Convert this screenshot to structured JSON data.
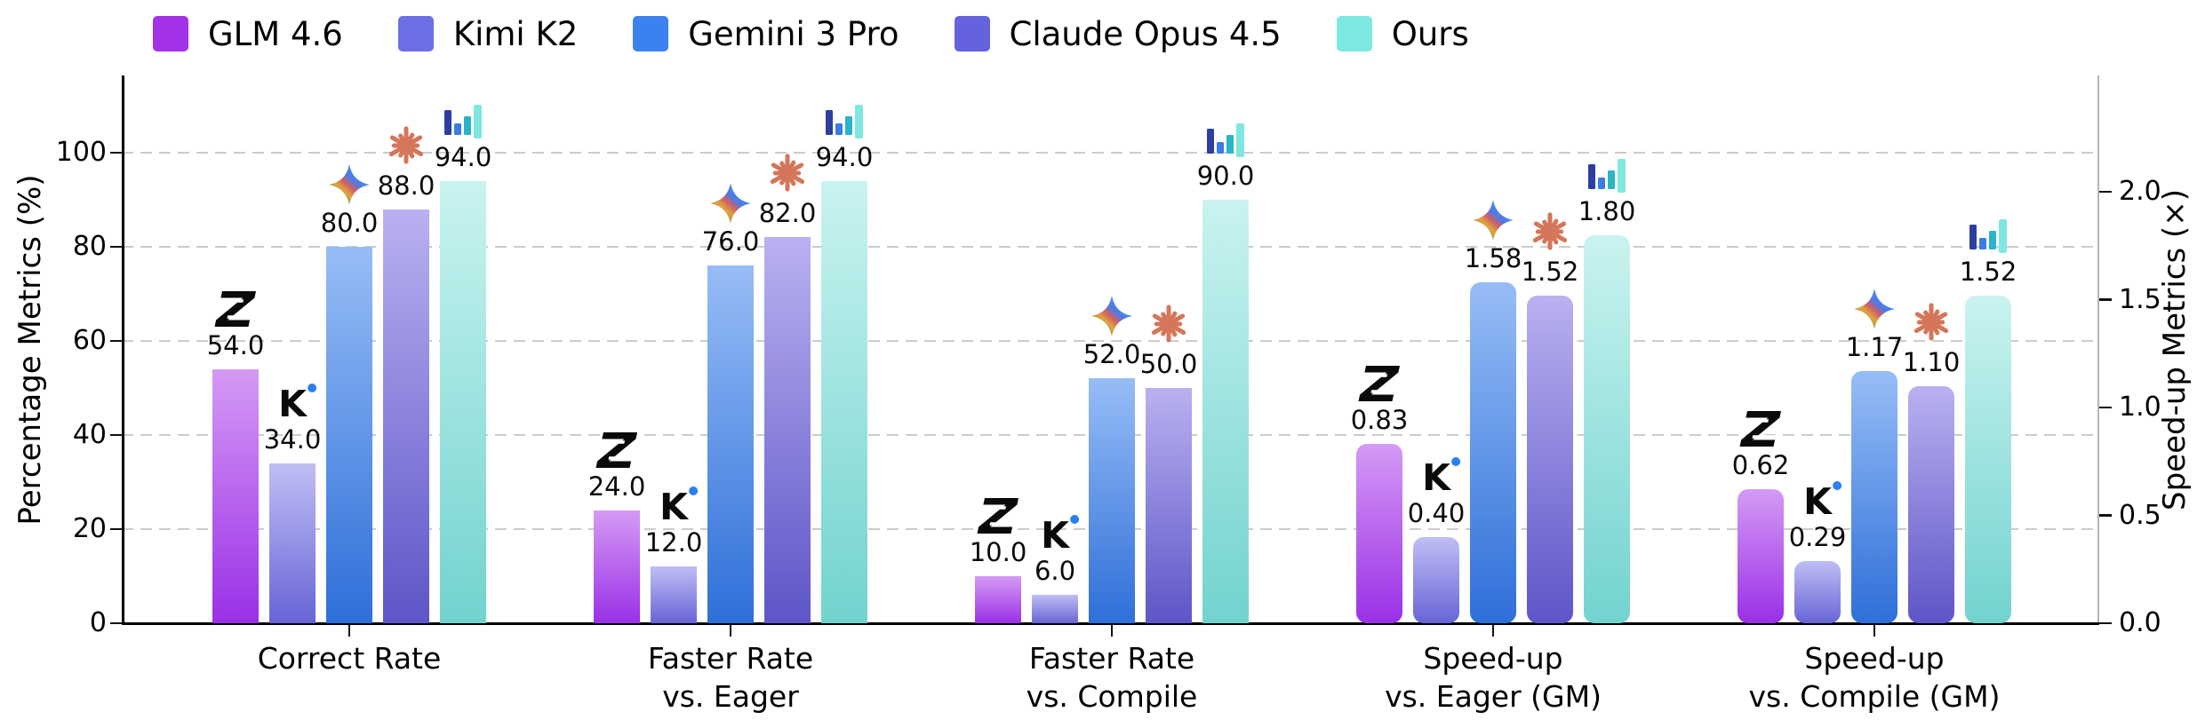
{
  "figure": {
    "legend": [
      {
        "label": "GLM 4.6",
        "color": "#a431ea"
      },
      {
        "label": "Kimi K2",
        "color": "#6e6fe6"
      },
      {
        "label": "Gemini 3 Pro",
        "color": "#3b82f0"
      },
      {
        "label": "Claude Opus 4.5",
        "color": "#6462dd"
      },
      {
        "label": "Ours",
        "color": "#7de9e3"
      }
    ],
    "left_axis": {
      "title": "Percentage Metrics (%)",
      "tick_labels": [
        "0",
        "20",
        "40",
        "60",
        "80",
        "100"
      ],
      "tick_values": [
        0,
        20,
        40,
        60,
        80,
        100
      ]
    },
    "right_axis": {
      "title": "Speed-up Metrics (×)",
      "tick_labels": [
        "0.0",
        "0.5",
        "1.0",
        "1.5",
        "2.0"
      ],
      "tick_values": [
        0,
        0.5,
        1,
        1.5,
        2
      ]
    }
  },
  "chart_data": {
    "type": "bar",
    "title": "",
    "categories": [
      "Correct Rate",
      "Faster Rate\nvs. Eager",
      "Faster Rate\nvs. Compile",
      "Speed-up\nvs. Eager (GM)",
      "Speed-up\nvs. Compile (GM)"
    ],
    "category_axis": [
      "percent",
      "percent",
      "percent",
      "speedup",
      "speedup"
    ],
    "left_axis_range": [
      0,
      100
    ],
    "right_axis_range": [
      0,
      2.0
    ],
    "grid": "dashed-horizontal",
    "legend_position": "top-left",
    "series": [
      {
        "name": "GLM 4.6",
        "icon": "glm-z",
        "color": "#a431ea",
        "gradient_top": "#d59af5",
        "gradient_bottom": "#9a30e6",
        "values": [
          54.0,
          24.0,
          10.0,
          0.83,
          0.62
        ],
        "value_labels": [
          "54.0",
          "24.0",
          "10.0",
          "0.83",
          "0.62"
        ]
      },
      {
        "name": "Kimi K2",
        "icon": "kimi-k",
        "color": "#6e6fe6",
        "gradient_top": "#c0bef4",
        "gradient_bottom": "#6765d6",
        "values": [
          34.0,
          12.0,
          6.0,
          0.4,
          0.29
        ],
        "value_labels": [
          "34.0",
          "12.0",
          "6.0",
          "0.40",
          "0.29"
        ]
      },
      {
        "name": "Gemini 3 Pro",
        "icon": "gemini-star",
        "color": "#3b82f0",
        "gradient_top": "#97bdf6",
        "gradient_bottom": "#2e6fd9",
        "values": [
          80.0,
          76.0,
          52.0,
          1.58,
          1.17
        ],
        "value_labels": [
          "80.0",
          "76.0",
          "52.0",
          "1.58",
          "1.17"
        ]
      },
      {
        "name": "Claude Opus 4.5",
        "icon": "claude-burst",
        "color": "#6462dd",
        "gradient_top": "#b9b1f0",
        "gradient_bottom": "#5e55c8",
        "values": [
          88.0,
          82.0,
          50.0,
          1.52,
          1.1
        ],
        "value_labels": [
          "88.0",
          "82.0",
          "50.0",
          "1.52",
          "1.10"
        ]
      },
      {
        "name": "Ours",
        "icon": "ours-bars",
        "color": "#7de9e3",
        "gradient_top": "#c9f3f0",
        "gradient_bottom": "#72d3ce",
        "values": [
          94.0,
          94.0,
          90.0,
          1.8,
          1.52
        ],
        "value_labels": [
          "94.0",
          "94.0",
          "90.0",
          "1.80",
          "1.52"
        ]
      }
    ]
  }
}
